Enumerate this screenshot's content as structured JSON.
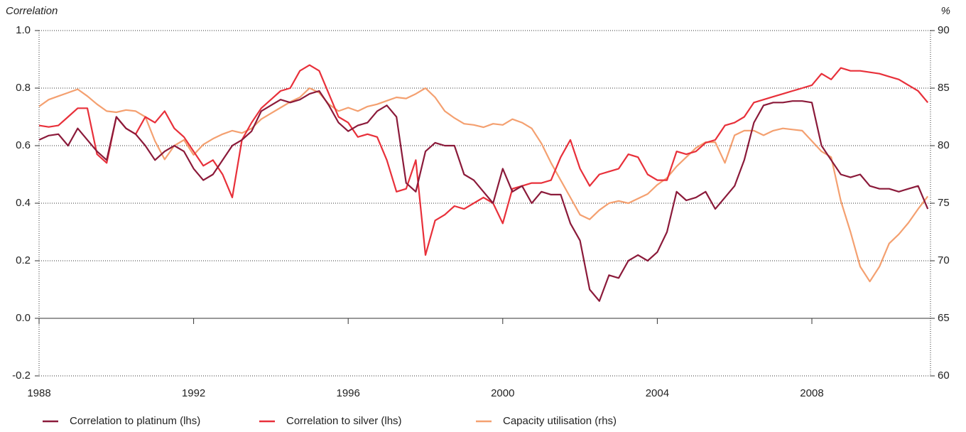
{
  "chart_data": {
    "type": "line",
    "y_label": "Correlation",
    "y2_label": "%",
    "x": [
      1988,
      1988.25,
      1988.5,
      1988.75,
      1989,
      1989.25,
      1989.5,
      1989.75,
      1990,
      1990.25,
      1990.5,
      1990.75,
      1991,
      1991.25,
      1991.5,
      1991.75,
      1992,
      1992.25,
      1992.5,
      1992.75,
      1993,
      1993.25,
      1993.5,
      1993.75,
      1994,
      1994.25,
      1994.5,
      1994.75,
      1995,
      1995.25,
      1995.5,
      1995.75,
      1996,
      1996.25,
      1996.5,
      1996.75,
      1997,
      1997.25,
      1997.5,
      1997.75,
      1998,
      1998.25,
      1998.5,
      1998.75,
      1999,
      1999.25,
      1999.5,
      1999.75,
      2000,
      2000.25,
      2000.5,
      2000.75,
      2001,
      2001.25,
      2001.5,
      2001.75,
      2002,
      2002.25,
      2002.5,
      2002.75,
      2003,
      2003.25,
      2003.5,
      2003.75,
      2004,
      2004.25,
      2004.5,
      2004.75,
      2005,
      2005.25,
      2005.5,
      2005.75,
      2006,
      2006.25,
      2006.5,
      2006.75,
      2007,
      2007.25,
      2007.5,
      2007.75,
      2008,
      2008.25,
      2008.5,
      2008.75,
      2009,
      2009.25,
      2009.5,
      2009.75,
      2010,
      2010.25,
      2010.5,
      2010.75,
      2011
    ],
    "series": [
      {
        "name": "Correlation to platinum (lhs)",
        "color": "#8b1a3a",
        "values": [
          0.62,
          0.635,
          0.64,
          0.6,
          0.66,
          0.62,
          0.58,
          0.55,
          0.7,
          0.66,
          0.64,
          0.6,
          0.55,
          0.58,
          0.6,
          0.58,
          0.52,
          0.48,
          0.5,
          0.55,
          0.6,
          0.62,
          0.65,
          0.72,
          0.74,
          0.76,
          0.75,
          0.76,
          0.78,
          0.79,
          0.74,
          0.68,
          0.65,
          0.67,
          0.68,
          0.72,
          0.74,
          0.7,
          0.47,
          0.44,
          0.58,
          0.61,
          0.6,
          0.6,
          0.5,
          0.48,
          0.44,
          0.4,
          0.52,
          0.44,
          0.46,
          0.4,
          0.44,
          0.43,
          0.43,
          0.33,
          0.27,
          0.1,
          0.06,
          0.15,
          0.14,
          0.2,
          0.22,
          0.2,
          0.23,
          0.3,
          0.44,
          0.41,
          0.42,
          0.44,
          0.38,
          0.42,
          0.46,
          0.55,
          0.68,
          0.74,
          0.75,
          0.75,
          0.755,
          0.755,
          0.75,
          0.6,
          0.55,
          0.5,
          0.49,
          0.5,
          0.46,
          0.45,
          0.45,
          0.44,
          0.45,
          0.46,
          0.38
        ]
      },
      {
        "name": "Correlation to silver (lhs)",
        "color": "#e8303a",
        "values": [
          0.67,
          0.665,
          0.67,
          0.7,
          0.73,
          0.73,
          0.57,
          0.54,
          0.7,
          0.66,
          0.64,
          0.7,
          0.68,
          0.72,
          0.66,
          0.63,
          0.58,
          0.53,
          0.55,
          0.5,
          0.42,
          0.62,
          0.68,
          0.73,
          0.76,
          0.79,
          0.8,
          0.86,
          0.88,
          0.86,
          0.78,
          0.7,
          0.68,
          0.63,
          0.64,
          0.63,
          0.55,
          0.44,
          0.45,
          0.55,
          0.22,
          0.34,
          0.36,
          0.39,
          0.38,
          0.4,
          0.42,
          0.4,
          0.33,
          0.45,
          0.46,
          0.47,
          0.47,
          0.48,
          0.56,
          0.62,
          0.52,
          0.46,
          0.5,
          0.51,
          0.52,
          0.57,
          0.56,
          0.5,
          0.48,
          0.48,
          0.58,
          0.57,
          0.58,
          0.61,
          0.62,
          0.67,
          0.68,
          0.7,
          0.75,
          0.76,
          0.77,
          0.78,
          0.79,
          0.8,
          0.81,
          0.85,
          0.83,
          0.87,
          0.86,
          0.86,
          0.855,
          0.85,
          0.84,
          0.83,
          0.81,
          0.79,
          0.75
        ]
      },
      {
        "name": "Capacity utilisation (rhs)",
        "color": "#f4a070",
        "axis": "y2",
        "values": [
          83.4,
          84.0,
          84.3,
          84.6,
          84.9,
          84.3,
          83.6,
          83.0,
          82.9,
          83.1,
          83.0,
          82.5,
          80.4,
          78.8,
          80.0,
          80.5,
          79.2,
          80.1,
          80.6,
          81.0,
          81.3,
          81.1,
          81.5,
          82.3,
          82.8,
          83.3,
          83.8,
          84.2,
          85.0,
          84.6,
          83.6,
          83.0,
          83.3,
          83.0,
          83.4,
          83.6,
          83.9,
          84.2,
          84.1,
          84.5,
          85.0,
          84.2,
          83.0,
          82.4,
          81.9,
          81.8,
          81.6,
          81.9,
          81.8,
          82.3,
          82.0,
          81.5,
          80.2,
          78.5,
          77.0,
          75.5,
          74.0,
          73.6,
          74.4,
          75.0,
          75.2,
          75.0,
          75.4,
          75.8,
          76.6,
          77.2,
          78.2,
          79.0,
          79.8,
          80.3,
          80.3,
          78.5,
          80.9,
          81.3,
          81.3,
          80.9,
          81.3,
          81.5,
          81.4,
          81.3,
          80.4,
          79.5,
          79.0,
          75.2,
          72.5,
          69.5,
          68.2,
          69.5,
          71.5,
          72.3,
          73.3,
          74.5,
          75.6
        ]
      }
    ],
    "xlim": [
      1988,
      2011.07
    ],
    "xticks": [
      1988,
      1992,
      1996,
      2000,
      2004,
      2008
    ],
    "ylim": [
      -0.2,
      1.0
    ],
    "yticks": [
      -0.2,
      {
        "value": 0,
        "label": "0.0"
      },
      0.2,
      0.4,
      0.6,
      0.8,
      {
        "value": 1,
        "label": "1.0"
      }
    ],
    "y2lim": [
      60,
      90
    ],
    "y2ticks": [
      60,
      65,
      70,
      75,
      80,
      85,
      90
    ],
    "grid": true,
    "legend": "bottom"
  }
}
